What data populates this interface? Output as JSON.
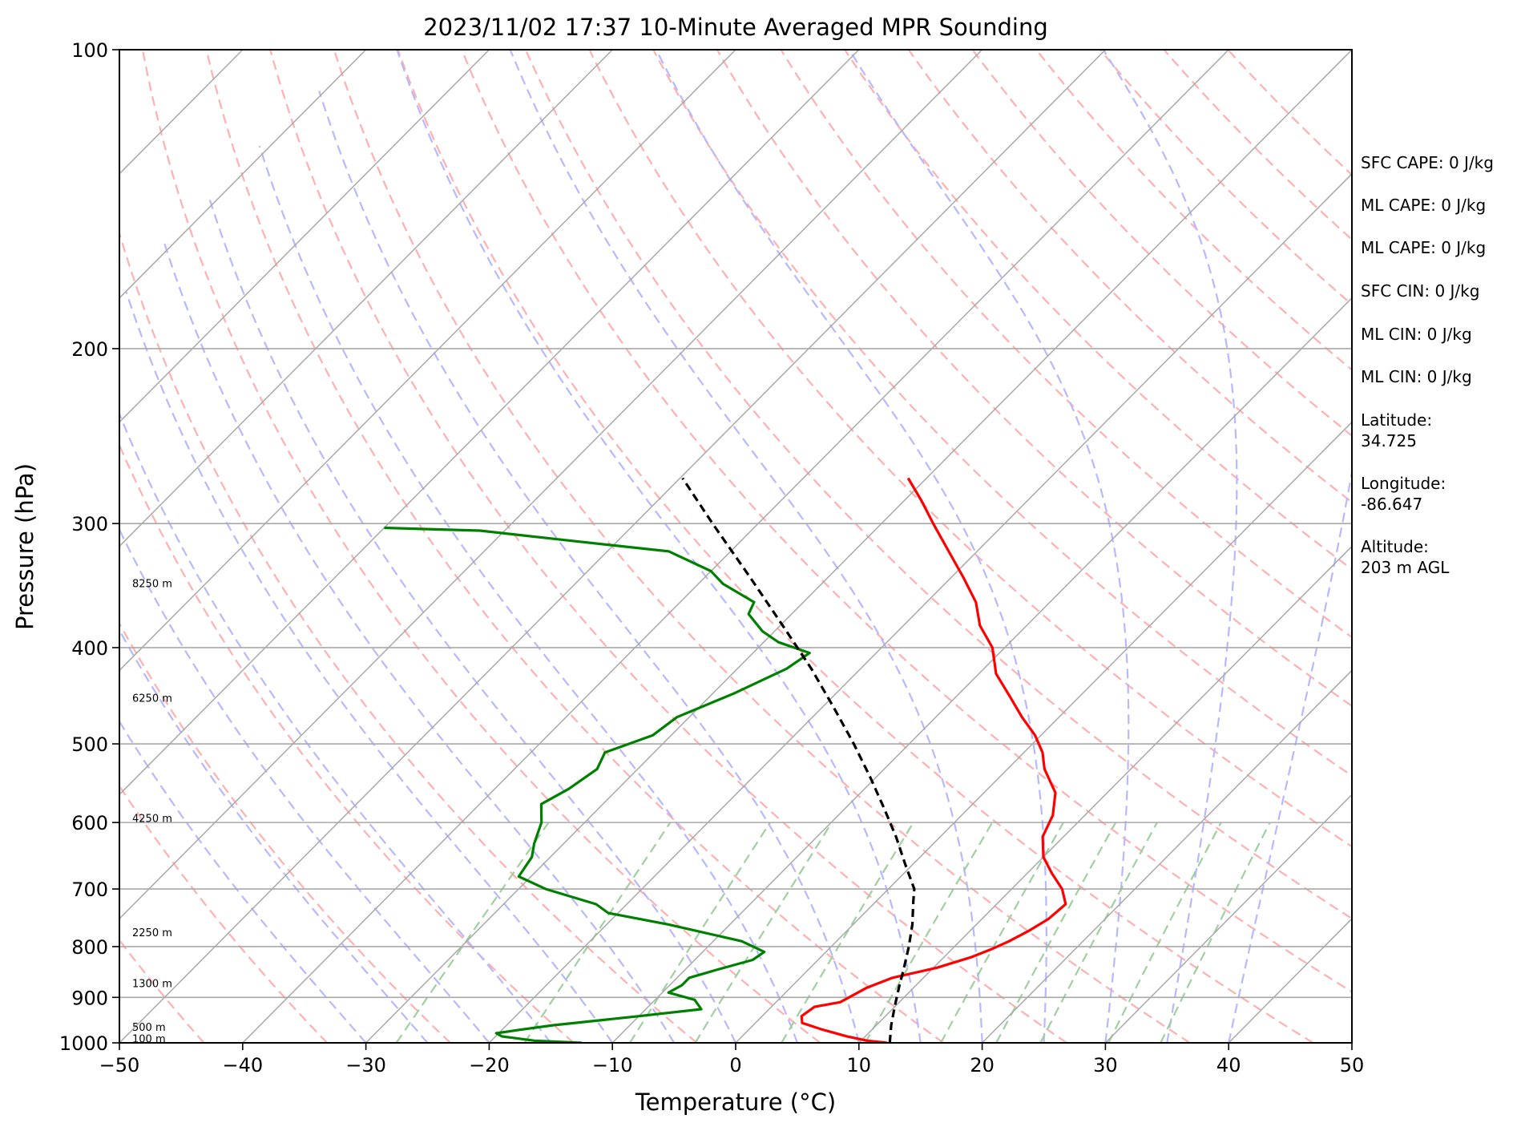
{
  "chart_data": {
    "type": "line",
    "subtype": "skew-t log-p",
    "title": "2023/11/02 17:37 10-Minute Averaged MPR Sounding",
    "xlabel": "Temperature (°C)",
    "ylabel": "Pressure (hPa)",
    "xlim": [
      -50,
      50
    ],
    "ylim": [
      1000,
      100
    ],
    "y_scale": "log",
    "x_ticks": [
      "−50",
      "−40",
      "−30",
      "−20",
      "−10",
      "0",
      "10",
      "20",
      "30",
      "40",
      "50"
    ],
    "y_ticks": [
      {
        "p": 100,
        "label": "100"
      },
      {
        "p": 200,
        "label": "200"
      },
      {
        "p": 300,
        "label": "300"
      },
      {
        "p": 400,
        "label": "400"
      },
      {
        "p": 500,
        "label": "500"
      },
      {
        "p": 600,
        "label": "600"
      },
      {
        "p": 700,
        "label": "700"
      },
      {
        "p": 800,
        "label": "800"
      },
      {
        "p": 900,
        "label": "900"
      },
      {
        "p": 1000,
        "label": "1000"
      }
    ],
    "grid": true,
    "height_labels": [
      {
        "p": 345,
        "text": "8250 m"
      },
      {
        "p": 450,
        "text": "6250 m"
      },
      {
        "p": 595,
        "text": "4250 m"
      },
      {
        "p": 775,
        "text": "2250 m"
      },
      {
        "p": 872,
        "text": "1300 m"
      },
      {
        "p": 965,
        "text": "500 m"
      },
      {
        "p": 992,
        "text": "100 m"
      }
    ],
    "series": [
      {
        "role": "temperature",
        "color": "#ff0000",
        "points": [
          [
            1000,
            12.3
          ],
          [
            995,
            10.5
          ],
          [
            985,
            8.5
          ],
          [
            970,
            6.0
          ],
          [
            955,
            3.8
          ],
          [
            940,
            3.2
          ],
          [
            920,
            3.5
          ],
          [
            910,
            5.2
          ],
          [
            880,
            6.2
          ],
          [
            860,
            7.5
          ],
          [
            840,
            10.3
          ],
          [
            820,
            12.2
          ],
          [
            805,
            13.2
          ],
          [
            790,
            14.0
          ],
          [
            770,
            14.8
          ],
          [
            750,
            15.4
          ],
          [
            725,
            15.6
          ],
          [
            700,
            14.1
          ],
          [
            675,
            12.0
          ],
          [
            650,
            10.0
          ],
          [
            620,
            8.3
          ],
          [
            590,
            7.4
          ],
          [
            560,
            5.8
          ],
          [
            530,
            3.0
          ],
          [
            510,
            1.5
          ],
          [
            490,
            -0.5
          ],
          [
            470,
            -3.0
          ],
          [
            450,
            -5.4
          ],
          [
            425,
            -8.6
          ],
          [
            400,
            -11.0
          ],
          [
            380,
            -13.8
          ],
          [
            360,
            -16.0
          ],
          [
            340,
            -19.0
          ],
          [
            320,
            -22.3
          ],
          [
            300,
            -25.8
          ],
          [
            285,
            -28.5
          ],
          [
            270,
            -31.5
          ]
        ]
      },
      {
        "role": "dewpoint",
        "color": "#008000",
        "points": [
          [
            1000,
            -12.5
          ],
          [
            995,
            -16.5
          ],
          [
            985,
            -19.5
          ],
          [
            978,
            -20.2
          ],
          [
            970,
            -18.5
          ],
          [
            960,
            -16.2
          ],
          [
            940,
            -10.0
          ],
          [
            925,
            -5.5
          ],
          [
            905,
            -6.8
          ],
          [
            890,
            -9.5
          ],
          [
            875,
            -9.0
          ],
          [
            860,
            -9.0
          ],
          [
            845,
            -7.5
          ],
          [
            825,
            -5.3
          ],
          [
            810,
            -5.0
          ],
          [
            790,
            -7.7
          ],
          [
            760,
            -15.0
          ],
          [
            740,
            -20.8
          ],
          [
            725,
            -22.5
          ],
          [
            700,
            -27.8
          ],
          [
            680,
            -31.0
          ],
          [
            650,
            -31.5
          ],
          [
            630,
            -32.4
          ],
          [
            600,
            -33.5
          ],
          [
            575,
            -35.0
          ],
          [
            555,
            -34.0
          ],
          [
            530,
            -33.3
          ],
          [
            510,
            -34.0
          ],
          [
            490,
            -31.5
          ],
          [
            470,
            -31.0
          ],
          [
            445,
            -28.3
          ],
          [
            420,
            -26.0
          ],
          [
            405,
            -25.4
          ],
          [
            395,
            -28.8
          ],
          [
            385,
            -31.0
          ],
          [
            370,
            -33.5
          ],
          [
            360,
            -34.0
          ],
          [
            345,
            -38.0
          ],
          [
            335,
            -40.0
          ],
          [
            320,
            -45.0
          ],
          [
            312,
            -54.0
          ],
          [
            305,
            -62.0
          ],
          [
            303,
            -70.0
          ]
        ]
      },
      {
        "role": "parcel",
        "color": "#000000",
        "style": "dashed",
        "points": [
          [
            1000,
            12.5
          ],
          [
            960,
            11.2
          ],
          [
            920,
            10.0
          ],
          [
            880,
            8.8
          ],
          [
            840,
            7.6
          ],
          [
            800,
            6.3
          ],
          [
            760,
            4.8
          ],
          [
            720,
            3.0
          ],
          [
            700,
            2.1
          ],
          [
            660,
            -0.7
          ],
          [
            620,
            -3.6
          ],
          [
            580,
            -6.9
          ],
          [
            540,
            -10.5
          ],
          [
            500,
            -14.5
          ],
          [
            460,
            -19.0
          ],
          [
            420,
            -24.0
          ],
          [
            380,
            -29.8
          ],
          [
            340,
            -36.3
          ],
          [
            300,
            -43.7
          ],
          [
            270,
            -49.8
          ]
        ]
      }
    ],
    "isotherm_color": "#a9a9a9",
    "dry_adiabat_color": "#ffb0b0",
    "moist_adiabat_color": "#b8b8ff",
    "mixing_ratio_color": "#9fd09f"
  },
  "info_panel": [
    "SFC CAPE: 0 J/kg",
    "ML CAPE: 0 J/kg",
    "ML CAPE: 0 J/kg",
    "SFC CIN: 0 J/kg",
    "ML CIN: 0 J/kg",
    "ML CIN: 0 J/kg",
    "Latitude:",
    "34.725",
    "Longitude:",
    "-86.647",
    "Altitude:",
    "203 m AGL"
  ]
}
